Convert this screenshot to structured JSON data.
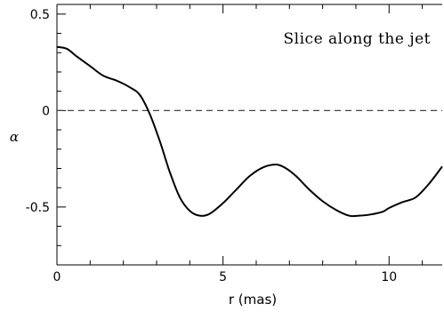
{
  "chart_data": {
    "type": "line",
    "title": "",
    "annotation": "Slice along the jet",
    "xlabel": "r (mas)",
    "ylabel": "α",
    "xlim": [
      0,
      11.6
    ],
    "ylim": [
      -0.8,
      0.55
    ],
    "x_major_ticks": [
      0,
      5,
      10
    ],
    "x_tick_labels": [
      "0",
      "5",
      "10"
    ],
    "x_minor_step": 1,
    "y_major_ticks": [
      0.5,
      0,
      -0.5
    ],
    "y_tick_labels": [
      "0.5",
      "0",
      "-0.5"
    ],
    "y_minor_step": 0.1,
    "reference_line": {
      "y": 0,
      "style": "dashed"
    },
    "grid": false,
    "series": [
      {
        "x": [
          0,
          0.3,
          0.6,
          1.0,
          1.4,
          1.8,
          2.2,
          2.5,
          2.8,
          3.1,
          3.4,
          3.7,
          4.0,
          4.3,
          4.6,
          5.0,
          5.4,
          5.8,
          6.2,
          6.6,
          6.9,
          7.2,
          7.6,
          8.0,
          8.4,
          8.8,
          9.1,
          9.4,
          9.8,
          10.0,
          10.4,
          10.8,
          11.2,
          11.6
        ],
        "y": [
          0.33,
          0.32,
          0.28,
          0.23,
          0.18,
          0.155,
          0.12,
          0.08,
          -0.02,
          -0.16,
          -0.32,
          -0.45,
          -0.52,
          -0.545,
          -0.535,
          -0.48,
          -0.41,
          -0.34,
          -0.295,
          -0.28,
          -0.3,
          -0.34,
          -0.41,
          -0.47,
          -0.515,
          -0.545,
          -0.545,
          -0.54,
          -0.525,
          -0.505,
          -0.475,
          -0.45,
          -0.38,
          -0.29
        ]
      }
    ]
  }
}
